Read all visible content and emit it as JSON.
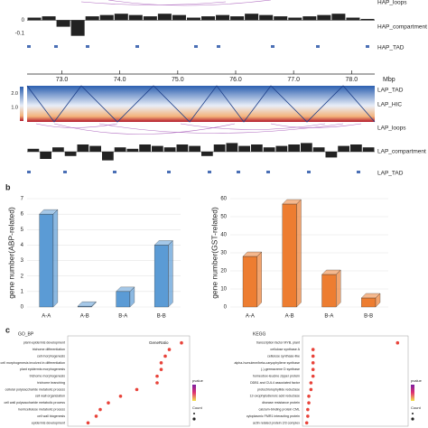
{
  "genome": {
    "track_labels": [
      "HAP_loops",
      "HAP_compartment",
      "HAP_TAD",
      "LAP_TAD",
      "LAP_HIC",
      "LAP_loops",
      "LAP_compartment",
      "LAP_TAD"
    ],
    "xlim": [
      72.4,
      78.4
    ],
    "xticks": [
      {
        "value": 73,
        "label": "73.0"
      },
      {
        "value": 74,
        "label": "74.0"
      },
      {
        "value": 75,
        "label": "75.0"
      },
      {
        "value": 76,
        "label": "76.0"
      },
      {
        "value": 77,
        "label": "77.0"
      },
      {
        "value": 78,
        "label": "78.0"
      }
    ],
    "unit": "Mbp",
    "colorbar_ticks": [
      {
        "value": 2,
        "label": "2.0"
      },
      {
        "value": 1,
        "label": "1.0"
      }
    ]
  },
  "panel_labels": [
    "b",
    "c"
  ],
  "chart_data": [
    {
      "type": "bar",
      "color": "#222222",
      "ylim": [
        -0.15,
        0.1
      ],
      "yticks": [
        0,
        -0.1
      ],
      "values": [
        0.02,
        0.03,
        -0.05,
        -0.12,
        0.03,
        0.04,
        0.05,
        0.04,
        0.03,
        0.05,
        0.04,
        0.02,
        0.03,
        0.04,
        0.03,
        0.05,
        0.04,
        0.03,
        0.02,
        0.03,
        0.04,
        0.05,
        0.02,
        0.01
      ]
    },
    {
      "type": "bar",
      "color": "#222222",
      "ylim": [
        -0.1,
        0.1
      ],
      "yticks": [],
      "values": [
        0.02,
        -0.05,
        0.03,
        -0.03,
        0.05,
        0.04,
        -0.06,
        0.03,
        0.02,
        0.05,
        0.04,
        0.03,
        0.05,
        0.04,
        -0.03,
        0.05,
        0.06,
        0.04,
        0.05,
        0.03,
        0.04,
        0.05,
        0.06,
        0.03,
        -0.04,
        0.04,
        0.05,
        0.03
      ]
    },
    {
      "type": "bar3d",
      "color": "#5b9bd5",
      "y_label": "gene number(ABP-related)",
      "categories": [
        "A-A",
        "A-B",
        "B-A",
        "B-B"
      ],
      "values": [
        6,
        0.05,
        1,
        4
      ],
      "ylim": [
        0,
        7
      ],
      "yticks": [
        0,
        1,
        2,
        3,
        4,
        5,
        6,
        7
      ],
      "grid": true
    },
    {
      "type": "bar3d",
      "color": "#ed7d31",
      "y_label": "gene number(GST-related)",
      "categories": [
        "A-A",
        "A-B",
        "B-A",
        "B-B"
      ],
      "values": [
        28,
        57,
        18,
        5
      ],
      "ylim": [
        0,
        60
      ],
      "yticks": [
        0,
        10,
        20,
        30,
        40,
        50,
        60
      ],
      "grid": true
    },
    {
      "type": "dot",
      "title": "GO_BP",
      "x_label": "GeneRatio",
      "legend_title": "pvalue",
      "size_title": "Count",
      "color": "#e8433a",
      "categories": [
        "plant-epidermis development",
        "trichome differentiation",
        "cell morphogenesis",
        "cell morphogenesis involved in differentiation",
        "plant epidermis morphogenesis",
        "trichome morphogenesis",
        "trichome branching",
        "cellular polysaccharide metabolic process",
        "cell wall organization",
        "cell wall polysaccharide metabolic process",
        "hemicellulose metabolic process",
        "cell wall biogenesis",
        "epidermis development"
      ],
      "values": [
        0.33,
        0.3,
        0.29,
        0.28,
        0.28,
        0.27,
        0.27,
        0.22,
        0.18,
        0.15,
        0.13,
        0.12,
        0.1
      ],
      "xlim": [
        0.05,
        0.35
      ]
    },
    {
      "type": "dot",
      "title": "KEGG",
      "legend_title": "pvalue",
      "size_title": "Count",
      "color": "#e8433a",
      "categories": [
        "transcription factor MYB, plant",
        "cellulose synthase A",
        "cellulose synthase-like",
        "alpha-humulene/beta-caryophyllene synthase",
        "(-)-germacrene D synthase",
        "homeobox-leucine zipper protein",
        "DDB1 and CUL4 associated factor",
        "protochlorophyllide reductase",
        "12-oxophytodienoic acid reductase",
        "disease resistance protein",
        "calcium-binding protein CML",
        "cytoplasmic FMR1 interacting protein",
        "actin related protein 2/3 complex"
      ],
      "values": [
        0.9,
        0.1,
        0.1,
        0.1,
        0.1,
        0.1,
        0.08,
        0.08,
        0.06,
        0.06,
        0.05,
        0.05,
        0.04
      ],
      "xlim": [
        0,
        1
      ]
    }
  ]
}
